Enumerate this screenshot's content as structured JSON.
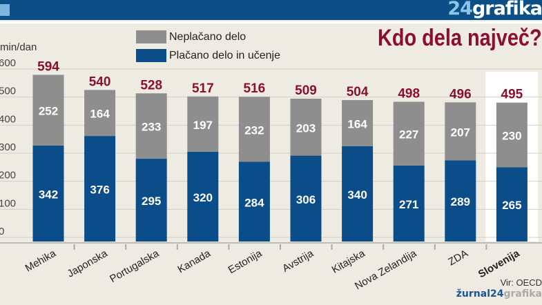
{
  "header": {
    "logo": "24grafika"
  },
  "source": "Vir: OECD",
  "footer_logo": {
    "brand": "žurnal24",
    "suffix": "grafika"
  },
  "chart_data": {
    "type": "bar",
    "stacked": true,
    "title": "Kdo dela največ?",
    "ylabel": "min/dan",
    "ylim": [
      0,
      600
    ],
    "yticks": [
      "0",
      "100",
      "200",
      "300",
      "400",
      "500",
      "600"
    ],
    "grid": true,
    "legend_placement": "top-left",
    "categories": [
      "Mehika",
      "Japonska",
      "Portugalska",
      "Kanada",
      "Estonija",
      "Avstrija",
      "Kitajska",
      "Nova Zelandija",
      "ZDA",
      "Slovenija"
    ],
    "highlight": "Slovenija",
    "totals": [
      594,
      540,
      528,
      517,
      516,
      509,
      504,
      498,
      496,
      495
    ],
    "series": [
      {
        "name": "Plačano delo in učenje",
        "color": "#0b4d89",
        "values": [
          342,
          376,
          295,
          320,
          284,
          306,
          340,
          271,
          289,
          265
        ]
      },
      {
        "name": "Neplačano delo",
        "color": "#8e8e8e",
        "values": [
          252,
          164,
          233,
          197,
          232,
          203,
          164,
          227,
          207,
          230
        ]
      }
    ],
    "total_label_color": "#8b0f2e"
  }
}
